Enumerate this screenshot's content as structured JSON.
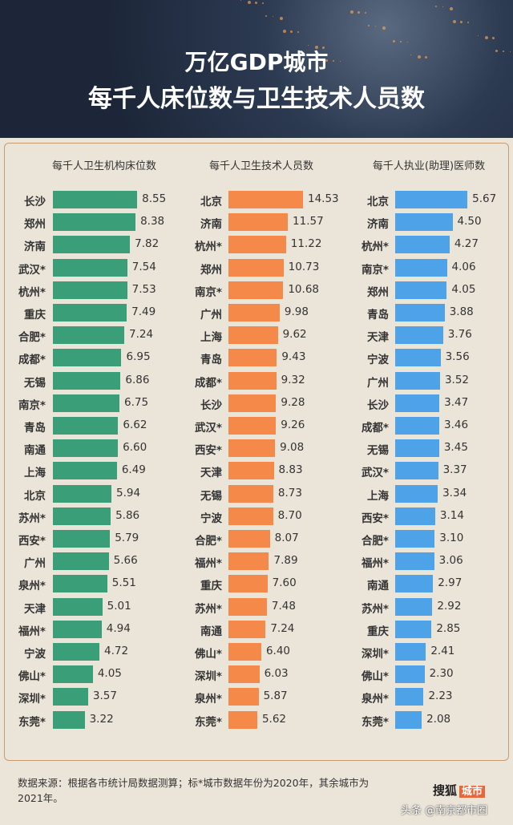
{
  "header": {
    "title_line1": "万亿GDP城市",
    "title_line2": "每千人床位数与卫生技术人员数"
  },
  "chart_data": [
    {
      "type": "bar",
      "orientation": "horizontal",
      "title": "每千人卫生机构床位数",
      "color": "#3a9e79",
      "categories": [
        "长沙",
        "郑州",
        "济南",
        "武汉*",
        "杭州*",
        "重庆",
        "合肥*",
        "成都*",
        "无锡",
        "南京*",
        "青岛",
        "南通",
        "上海",
        "北京",
        "苏州*",
        "西安*",
        "广州",
        "泉州*",
        "天津",
        "福州*",
        "宁波",
        "佛山*",
        "深圳*",
        "东莞*"
      ],
      "values": [
        8.55,
        8.38,
        7.82,
        7.54,
        7.53,
        7.49,
        7.24,
        6.95,
        6.86,
        6.75,
        6.62,
        6.6,
        6.49,
        5.94,
        5.86,
        5.79,
        5.66,
        5.51,
        5.01,
        4.94,
        4.72,
        4.05,
        3.57,
        3.22
      ],
      "labels": [
        "8.55",
        "8.38",
        "7.82",
        "7.54",
        "7.53",
        "7.49",
        "7.24",
        "6.95",
        "6.86",
        "6.75",
        "6.62",
        "6.60",
        "6.49",
        "5.94",
        "5.86",
        "5.79",
        "5.66",
        "5.51",
        "5.01",
        "4.94",
        "4.72",
        "4.05",
        "3.57",
        "3.22"
      ]
    },
    {
      "type": "bar",
      "orientation": "horizontal",
      "title": "每千人卫生技术人员数",
      "color": "#f5894a",
      "categories": [
        "北京",
        "济南",
        "杭州*",
        "郑州",
        "南京*",
        "广州",
        "上海",
        "青岛",
        "成都*",
        "长沙",
        "武汉*",
        "西安*",
        "天津",
        "无锡",
        "宁波",
        "合肥*",
        "福州*",
        "重庆",
        "苏州*",
        "南通",
        "佛山*",
        "深圳*",
        "泉州*",
        "东莞*"
      ],
      "values": [
        14.53,
        11.57,
        11.22,
        10.73,
        10.68,
        9.98,
        9.62,
        9.43,
        9.32,
        9.28,
        9.26,
        9.08,
        8.83,
        8.73,
        8.7,
        8.07,
        7.89,
        7.6,
        7.48,
        7.24,
        6.4,
        6.03,
        5.87,
        5.62
      ],
      "labels": [
        "14.53",
        "11.57",
        "11.22",
        "10.73",
        "10.68",
        "9.98",
        "9.62",
        "9.43",
        "9.32",
        "9.28",
        "9.26",
        "9.08",
        "8.83",
        "8.73",
        "8.70",
        "8.07",
        "7.89",
        "7.60",
        "7.48",
        "7.24",
        "6.40",
        "6.03",
        "5.87",
        "5.62"
      ]
    },
    {
      "type": "bar",
      "orientation": "horizontal",
      "title": "每千人执业(助理)医师数",
      "color": "#4ea3e8",
      "categories": [
        "北京",
        "济南",
        "杭州*",
        "南京*",
        "郑州",
        "青岛",
        "天津",
        "宁波",
        "广州",
        "长沙",
        "成都*",
        "无锡",
        "武汉*",
        "上海",
        "西安*",
        "合肥*",
        "福州*",
        "南通",
        "苏州*",
        "重庆",
        "深圳*",
        "佛山*",
        "泉州*",
        "东莞*"
      ],
      "values": [
        5.67,
        4.5,
        4.27,
        4.06,
        4.05,
        3.88,
        3.76,
        3.56,
        3.52,
        3.47,
        3.46,
        3.45,
        3.37,
        3.34,
        3.14,
        3.1,
        3.06,
        2.97,
        2.92,
        2.85,
        2.41,
        2.3,
        2.23,
        2.08
      ],
      "labels": [
        "5.67",
        "4.50",
        "4.27",
        "4.06",
        "4.05",
        "3.88",
        "3.76",
        "3.56",
        "3.52",
        "3.47",
        "3.46",
        "3.45",
        "3.37",
        "3.34",
        "3.14",
        "3.10",
        "3.06",
        "2.97",
        "2.92",
        "2.85",
        "2.41",
        "2.30",
        "2.23",
        "2.08"
      ]
    }
  ],
  "footer": {
    "note": "数据来源：根据各市统计局数据测算；标*城市数据年份为2020年，其余城市为2021年。",
    "logo_text": "搜狐",
    "logo_badge": "城市",
    "watermark": "头条 @南京都市圈"
  }
}
